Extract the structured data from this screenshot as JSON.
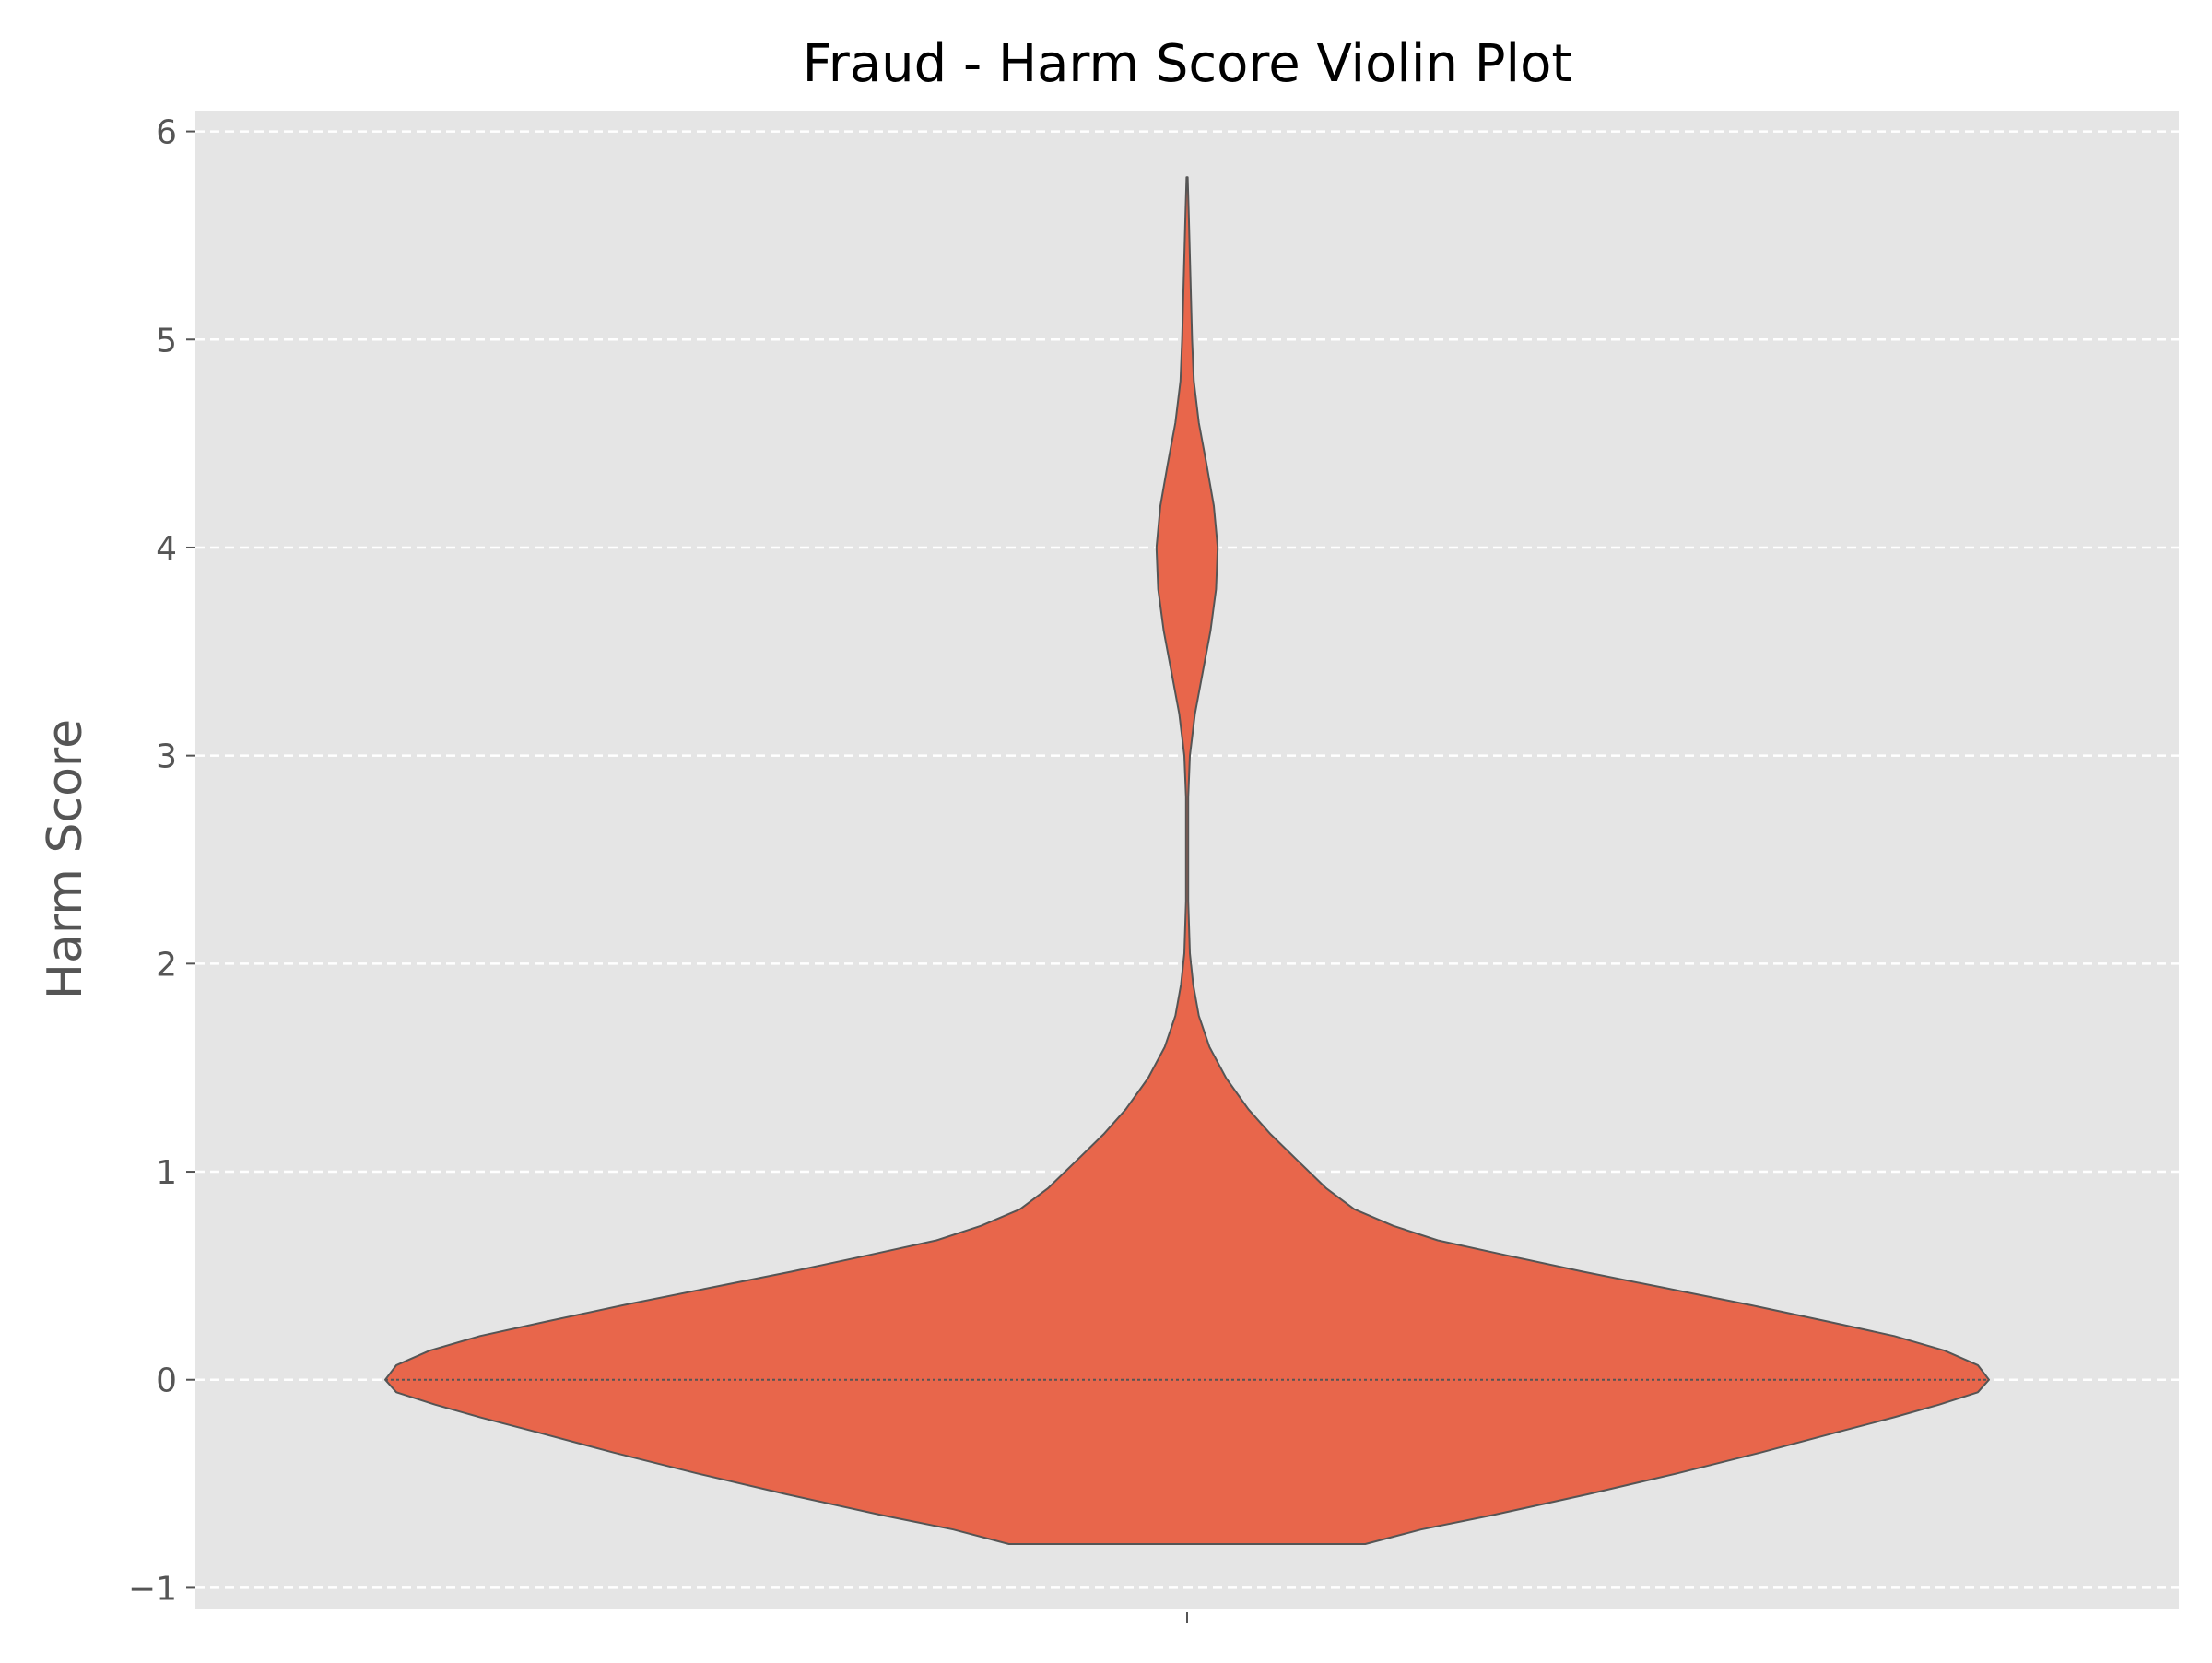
{
  "chart_data": {
    "type": "violin",
    "title": "Fraud - Harm Score Violin Plot",
    "xlabel": "",
    "ylabel": "Harm Score",
    "ylim": [
      -1.1,
      6.1
    ],
    "yticks": [
      -1,
      0,
      1,
      2,
      3,
      4,
      5,
      6
    ],
    "ytick_labels": [
      "−1",
      "0",
      "1",
      "2",
      "3",
      "4",
      "5",
      "6"
    ],
    "grid": {
      "axis": "y",
      "style": "dashed"
    },
    "legend": "none",
    "colors": {
      "violin_fill": "#E8664B",
      "violin_edge": "#555555",
      "axes_background": "#E5E5E5",
      "grid": "#FFFFFF",
      "tick_text": "#555555",
      "title_text": "#000000"
    },
    "violin": {
      "y_min": -0.79,
      "y_max": 5.78,
      "median": 0.0,
      "density_profile": [
        {
          "y": -0.79,
          "half_width": 0.32
        },
        {
          "y": -0.72,
          "half_width": 0.42
        },
        {
          "y": -0.65,
          "half_width": 0.55
        },
        {
          "y": -0.55,
          "half_width": 0.72
        },
        {
          "y": -0.45,
          "half_width": 0.88
        },
        {
          "y": -0.35,
          "half_width": 1.03
        },
        {
          "y": -0.25,
          "half_width": 1.17
        },
        {
          "y": -0.18,
          "half_width": 1.27
        },
        {
          "y": -0.12,
          "half_width": 1.35
        },
        {
          "y": -0.06,
          "half_width": 1.42
        },
        {
          "y": 0.0,
          "half_width": 1.44
        },
        {
          "y": 0.07,
          "half_width": 1.42
        },
        {
          "y": 0.14,
          "half_width": 1.36
        },
        {
          "y": 0.21,
          "half_width": 1.27
        },
        {
          "y": 0.28,
          "half_width": 1.15
        },
        {
          "y": 0.36,
          "half_width": 1.01
        },
        {
          "y": 0.44,
          "half_width": 0.86
        },
        {
          "y": 0.52,
          "half_width": 0.71
        },
        {
          "y": 0.6,
          "half_width": 0.57
        },
        {
          "y": 0.67,
          "half_width": 0.45
        },
        {
          "y": 0.74,
          "half_width": 0.37
        },
        {
          "y": 0.82,
          "half_width": 0.3
        },
        {
          "y": 0.92,
          "half_width": 0.25
        },
        {
          "y": 1.05,
          "half_width": 0.2
        },
        {
          "y": 1.18,
          "half_width": 0.15
        },
        {
          "y": 1.3,
          "half_width": 0.11
        },
        {
          "y": 1.45,
          "half_width": 0.07
        },
        {
          "y": 1.6,
          "half_width": 0.04
        },
        {
          "y": 1.75,
          "half_width": 0.021
        },
        {
          "y": 1.9,
          "half_width": 0.011
        },
        {
          "y": 2.05,
          "half_width": 0.005
        },
        {
          "y": 2.3,
          "half_width": 0.002
        },
        {
          "y": 2.8,
          "half_width": 0.002
        },
        {
          "y": 3.0,
          "half_width": 0.005
        },
        {
          "y": 3.2,
          "half_width": 0.014
        },
        {
          "y": 3.4,
          "half_width": 0.028
        },
        {
          "y": 3.6,
          "half_width": 0.042
        },
        {
          "y": 3.8,
          "half_width": 0.052
        },
        {
          "y": 4.0,
          "half_width": 0.055
        },
        {
          "y": 4.2,
          "half_width": 0.048
        },
        {
          "y": 4.4,
          "half_width": 0.035
        },
        {
          "y": 4.6,
          "half_width": 0.021
        },
        {
          "y": 4.8,
          "half_width": 0.012
        },
        {
          "y": 5.0,
          "half_width": 0.009
        },
        {
          "y": 5.2,
          "half_width": 0.007
        },
        {
          "y": 5.4,
          "half_width": 0.005
        },
        {
          "y": 5.6,
          "half_width": 0.003
        },
        {
          "y": 5.78,
          "half_width": 0.001
        }
      ]
    }
  }
}
